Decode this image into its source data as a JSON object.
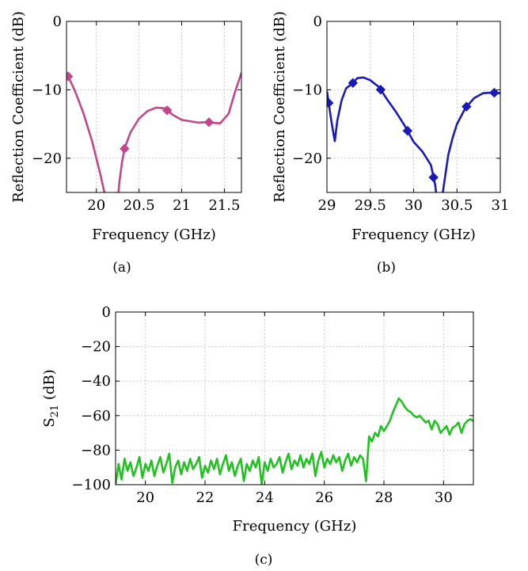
{
  "chart_data": [
    {
      "type": "line",
      "caption": "(a)",
      "xlabel": "Frequency (GHz)",
      "ylabel": "Reflection Coefficient (dB)",
      "xlim": [
        19.65,
        21.7
      ],
      "ylim": [
        -25,
        0
      ],
      "xticks": [
        20,
        20.5,
        21,
        21.5
      ],
      "yticks": [
        0,
        -10,
        -20
      ],
      "xtick_labels": [
        "20",
        "20.5",
        "21",
        "21.5"
      ],
      "ytick_labels": [
        "0",
        "−10",
        "−20"
      ],
      "grid": true,
      "color": "#c2478a",
      "series": [
        {
          "x": [
            19.65,
            19.75,
            19.85,
            19.95,
            20.05,
            20.12,
            20.16,
            20.2,
            20.24,
            20.27,
            20.3,
            20.33,
            20.4,
            20.5,
            20.6,
            20.7,
            20.8,
            20.9,
            21.0,
            21.1,
            21.2,
            21.3,
            21.35,
            21.45,
            21.55,
            21.62,
            21.7
          ],
          "y": [
            -7.5,
            -10.2,
            -13.5,
            -17.5,
            -22.5,
            -26.5,
            -30,
            -30,
            -27.5,
            -23.5,
            -20.6,
            -18.6,
            -16.2,
            -14.2,
            -13.1,
            -12.6,
            -12.7,
            -13.7,
            -14.4,
            -14.6,
            -14.8,
            -14.7,
            -14.8,
            -14.9,
            -13.5,
            -10.5,
            -7.5
          ],
          "markers_x": [
            19.67,
            20.33,
            20.83,
            21.32
          ]
        }
      ]
    },
    {
      "type": "line",
      "caption": "(b)",
      "xlabel": "Frequency (GHz)",
      "ylabel": "Reflection Coefficient (dB)",
      "xlim": [
        29,
        31
      ],
      "ylim": [
        -25,
        0
      ],
      "xticks": [
        29,
        29.5,
        30,
        30.5,
        31
      ],
      "yticks": [
        0,
        -10,
        -20
      ],
      "xtick_labels": [
        "29",
        "29.5",
        "30",
        "30.5",
        "31"
      ],
      "ytick_labels": [
        "0",
        "−10",
        "−20"
      ],
      "grid": true,
      "color": "#1a1ab8",
      "series": [
        {
          "x": [
            29.0,
            29.05,
            29.09,
            29.12,
            29.17,
            29.22,
            29.3,
            29.35,
            29.42,
            29.5,
            29.6,
            29.7,
            29.8,
            29.9,
            30.0,
            30.1,
            30.2,
            30.25,
            30.28,
            30.32,
            30.36,
            30.4,
            30.45,
            30.5,
            30.6,
            30.7,
            30.8,
            30.9,
            31.0
          ],
          "y": [
            -10.2,
            -14.5,
            -17.5,
            -14.5,
            -11.5,
            -9.8,
            -9.0,
            -8.3,
            -8.2,
            -8.6,
            -9.6,
            -11.5,
            -13.3,
            -15.3,
            -17.6,
            -19.0,
            -21.0,
            -24.0,
            -27.5,
            -26.5,
            -23.0,
            -19.5,
            -17.0,
            -15.0,
            -12.6,
            -11.2,
            -10.5,
            -10.4,
            -10.5
          ],
          "markers_x": [
            29.02,
            29.3,
            29.62,
            29.93,
            30.23,
            30.61,
            30.93
          ]
        }
      ]
    },
    {
      "type": "line",
      "caption": "(c)",
      "xlabel": "Frequency (GHz)",
      "ylabel": "S21 (dB)",
      "xlim": [
        19,
        31
      ],
      "ylim": [
        -100,
        0
      ],
      "xticks": [
        20,
        22,
        24,
        26,
        28,
        30
      ],
      "yticks": [
        0,
        -20,
        -40,
        -60,
        -80,
        -100
      ],
      "xtick_labels": [
        "20",
        "22",
        "24",
        "26",
        "28",
        "30"
      ],
      "ytick_labels": [
        "0",
        "−20",
        "−40",
        "−60",
        "−80",
        "−100"
      ],
      "grid": true,
      "color": "#22c122",
      "series": [
        {
          "x": [
            19.0,
            19.1,
            19.2,
            19.3,
            19.4,
            19.5,
            19.6,
            19.7,
            19.8,
            19.9,
            20.0,
            20.1,
            20.2,
            20.3,
            20.4,
            20.5,
            20.6,
            20.7,
            20.8,
            20.9,
            21.0,
            21.1,
            21.2,
            21.3,
            21.4,
            21.5,
            21.6,
            21.7,
            21.8,
            21.9,
            22.0,
            22.1,
            22.2,
            22.3,
            22.4,
            22.5,
            22.6,
            22.7,
            22.8,
            22.9,
            23.0,
            23.1,
            23.2,
            23.3,
            23.4,
            23.5,
            23.6,
            23.7,
            23.8,
            23.9,
            24.0,
            24.1,
            24.2,
            24.3,
            24.4,
            24.5,
            24.6,
            24.7,
            24.8,
            24.9,
            25.0,
            25.1,
            25.2,
            25.3,
            25.4,
            25.5,
            25.6,
            25.7,
            25.8,
            25.9,
            26.0,
            26.1,
            26.2,
            26.3,
            26.4,
            26.5,
            26.6,
            26.7,
            26.8,
            26.9,
            27.0,
            27.1,
            27.2,
            27.3,
            27.4,
            27.5,
            27.6,
            27.7,
            27.8,
            27.9,
            28.0,
            28.1,
            28.2,
            28.3,
            28.4,
            28.5,
            28.6,
            28.7,
            28.8,
            28.9,
            29.0,
            29.1,
            29.2,
            29.3,
            29.4,
            29.5,
            29.6,
            29.7,
            29.8,
            29.9,
            30.0,
            30.1,
            30.2,
            30.3,
            30.4,
            30.5,
            30.6,
            30.7,
            30.8,
            30.9,
            31.0
          ],
          "y": [
            -100,
            -88,
            -97,
            -85,
            -92,
            -87,
            -95,
            -90,
            -84,
            -96,
            -88,
            -92,
            -86,
            -95,
            -89,
            -84,
            -93,
            -88,
            -82,
            -99,
            -90,
            -86,
            -94,
            -87,
            -92,
            -85,
            -91,
            -88,
            -84,
            -96,
            -89,
            -93,
            -86,
            -91,
            -85,
            -94,
            -88,
            -83,
            -92,
            -87,
            -95,
            -89,
            -85,
            -98,
            -88,
            -92,
            -86,
            -90,
            -84,
            -100,
            -87,
            -92,
            -85,
            -90,
            -88,
            -84,
            -93,
            -87,
            -82,
            -91,
            -86,
            -89,
            -83,
            -90,
            -85,
            -88,
            -82,
            -95,
            -86,
            -81,
            -90,
            -85,
            -88,
            -83,
            -87,
            -84,
            -92,
            -86,
            -82,
            -89,
            -84,
            -87,
            -83,
            -85,
            -98,
            -72,
            -75,
            -70,
            -72,
            -66,
            -69,
            -66,
            -63,
            -58,
            -54,
            -50,
            -52,
            -55,
            -57,
            -58,
            -60,
            -61,
            -60,
            -62,
            -64,
            -63,
            -68,
            -63,
            -65,
            -70,
            -68,
            -66,
            -71,
            -67,
            -66,
            -64,
            -70,
            -65,
            -63,
            -62,
            -63
          ]
        }
      ]
    }
  ]
}
